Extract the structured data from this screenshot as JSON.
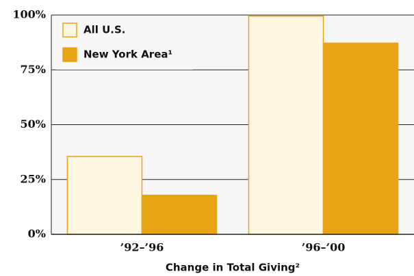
{
  "chart_data": {
    "type": "bar",
    "xlabel": "Change in Total Giving²",
    "categories": [
      "’92–’96",
      "’96–’00"
    ],
    "series": [
      {
        "name": "All U.S.",
        "color": "#fef8e1",
        "edge": "#e8a317",
        "values": [
          35.5,
          99.5
        ]
      },
      {
        "name": "New York Area¹",
        "color": "#e8a317",
        "edge": "#e8a317",
        "values": [
          17.8,
          87.2
        ]
      }
    ],
    "ylim": [
      0,
      100
    ],
    "yticks": [
      {
        "value": 0,
        "label": "0%"
      },
      {
        "value": 25,
        "label": "25%"
      },
      {
        "value": 50,
        "label": "50%"
      },
      {
        "value": 75,
        "label": "75%"
      },
      {
        "value": 100,
        "label": "100%"
      }
    ],
    "grid": true,
    "legend": "upper left"
  }
}
